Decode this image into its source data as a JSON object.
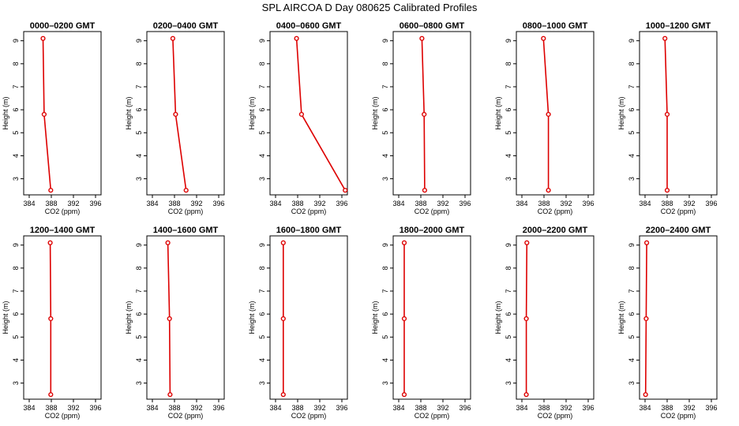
{
  "title": "SPL AIRCOA D  Day 080625  Calibrated Profiles",
  "colors": {
    "series": "#dd0000",
    "frame": "#000000",
    "text": "#000000"
  },
  "chart_data": {
    "type": "line",
    "xlabel": "CO2 (ppm)",
    "ylabel": "Height (m)",
    "xlim": [
      383,
      397
    ],
    "ylim": [
      2.3,
      9.4
    ],
    "xticks": [
      "384",
      "388",
      "392",
      "396"
    ],
    "yticks": [
      "3",
      "4",
      "5",
      "6",
      "7",
      "8",
      "9"
    ],
    "heights": [
      9.1,
      5.8,
      2.5
    ],
    "panels": [
      {
        "title": "0000–0200 GMT",
        "co2": [
          386.5,
          386.7,
          387.9
        ]
      },
      {
        "title": "0200–0400 GMT",
        "co2": [
          387.7,
          388.2,
          390.1
        ]
      },
      {
        "title": "0400–0600 GMT",
        "co2": [
          387.8,
          388.7,
          396.6
        ]
      },
      {
        "title": "0600–0800 GMT",
        "co2": [
          388.2,
          388.6,
          388.7
        ]
      },
      {
        "title": "0800–1000 GMT",
        "co2": [
          387.9,
          388.8,
          388.8
        ]
      },
      {
        "title": "1000–1200 GMT",
        "co2": [
          387.6,
          388.0,
          388.0
        ]
      },
      {
        "title": "1200–1400 GMT",
        "co2": [
          387.8,
          387.9,
          387.9
        ]
      },
      {
        "title": "1400–1600 GMT",
        "co2": [
          386.8,
          387.1,
          387.2
        ]
      },
      {
        "title": "1600–1800 GMT",
        "co2": [
          385.4,
          385.4,
          385.4
        ]
      },
      {
        "title": "1800–2000 GMT",
        "co2": [
          385.0,
          385.0,
          385.0
        ]
      },
      {
        "title": "2000–2200 GMT",
        "co2": [
          384.9,
          384.8,
          384.8
        ]
      },
      {
        "title": "2200–2400 GMT",
        "co2": [
          384.3,
          384.2,
          384.1
        ]
      }
    ]
  }
}
